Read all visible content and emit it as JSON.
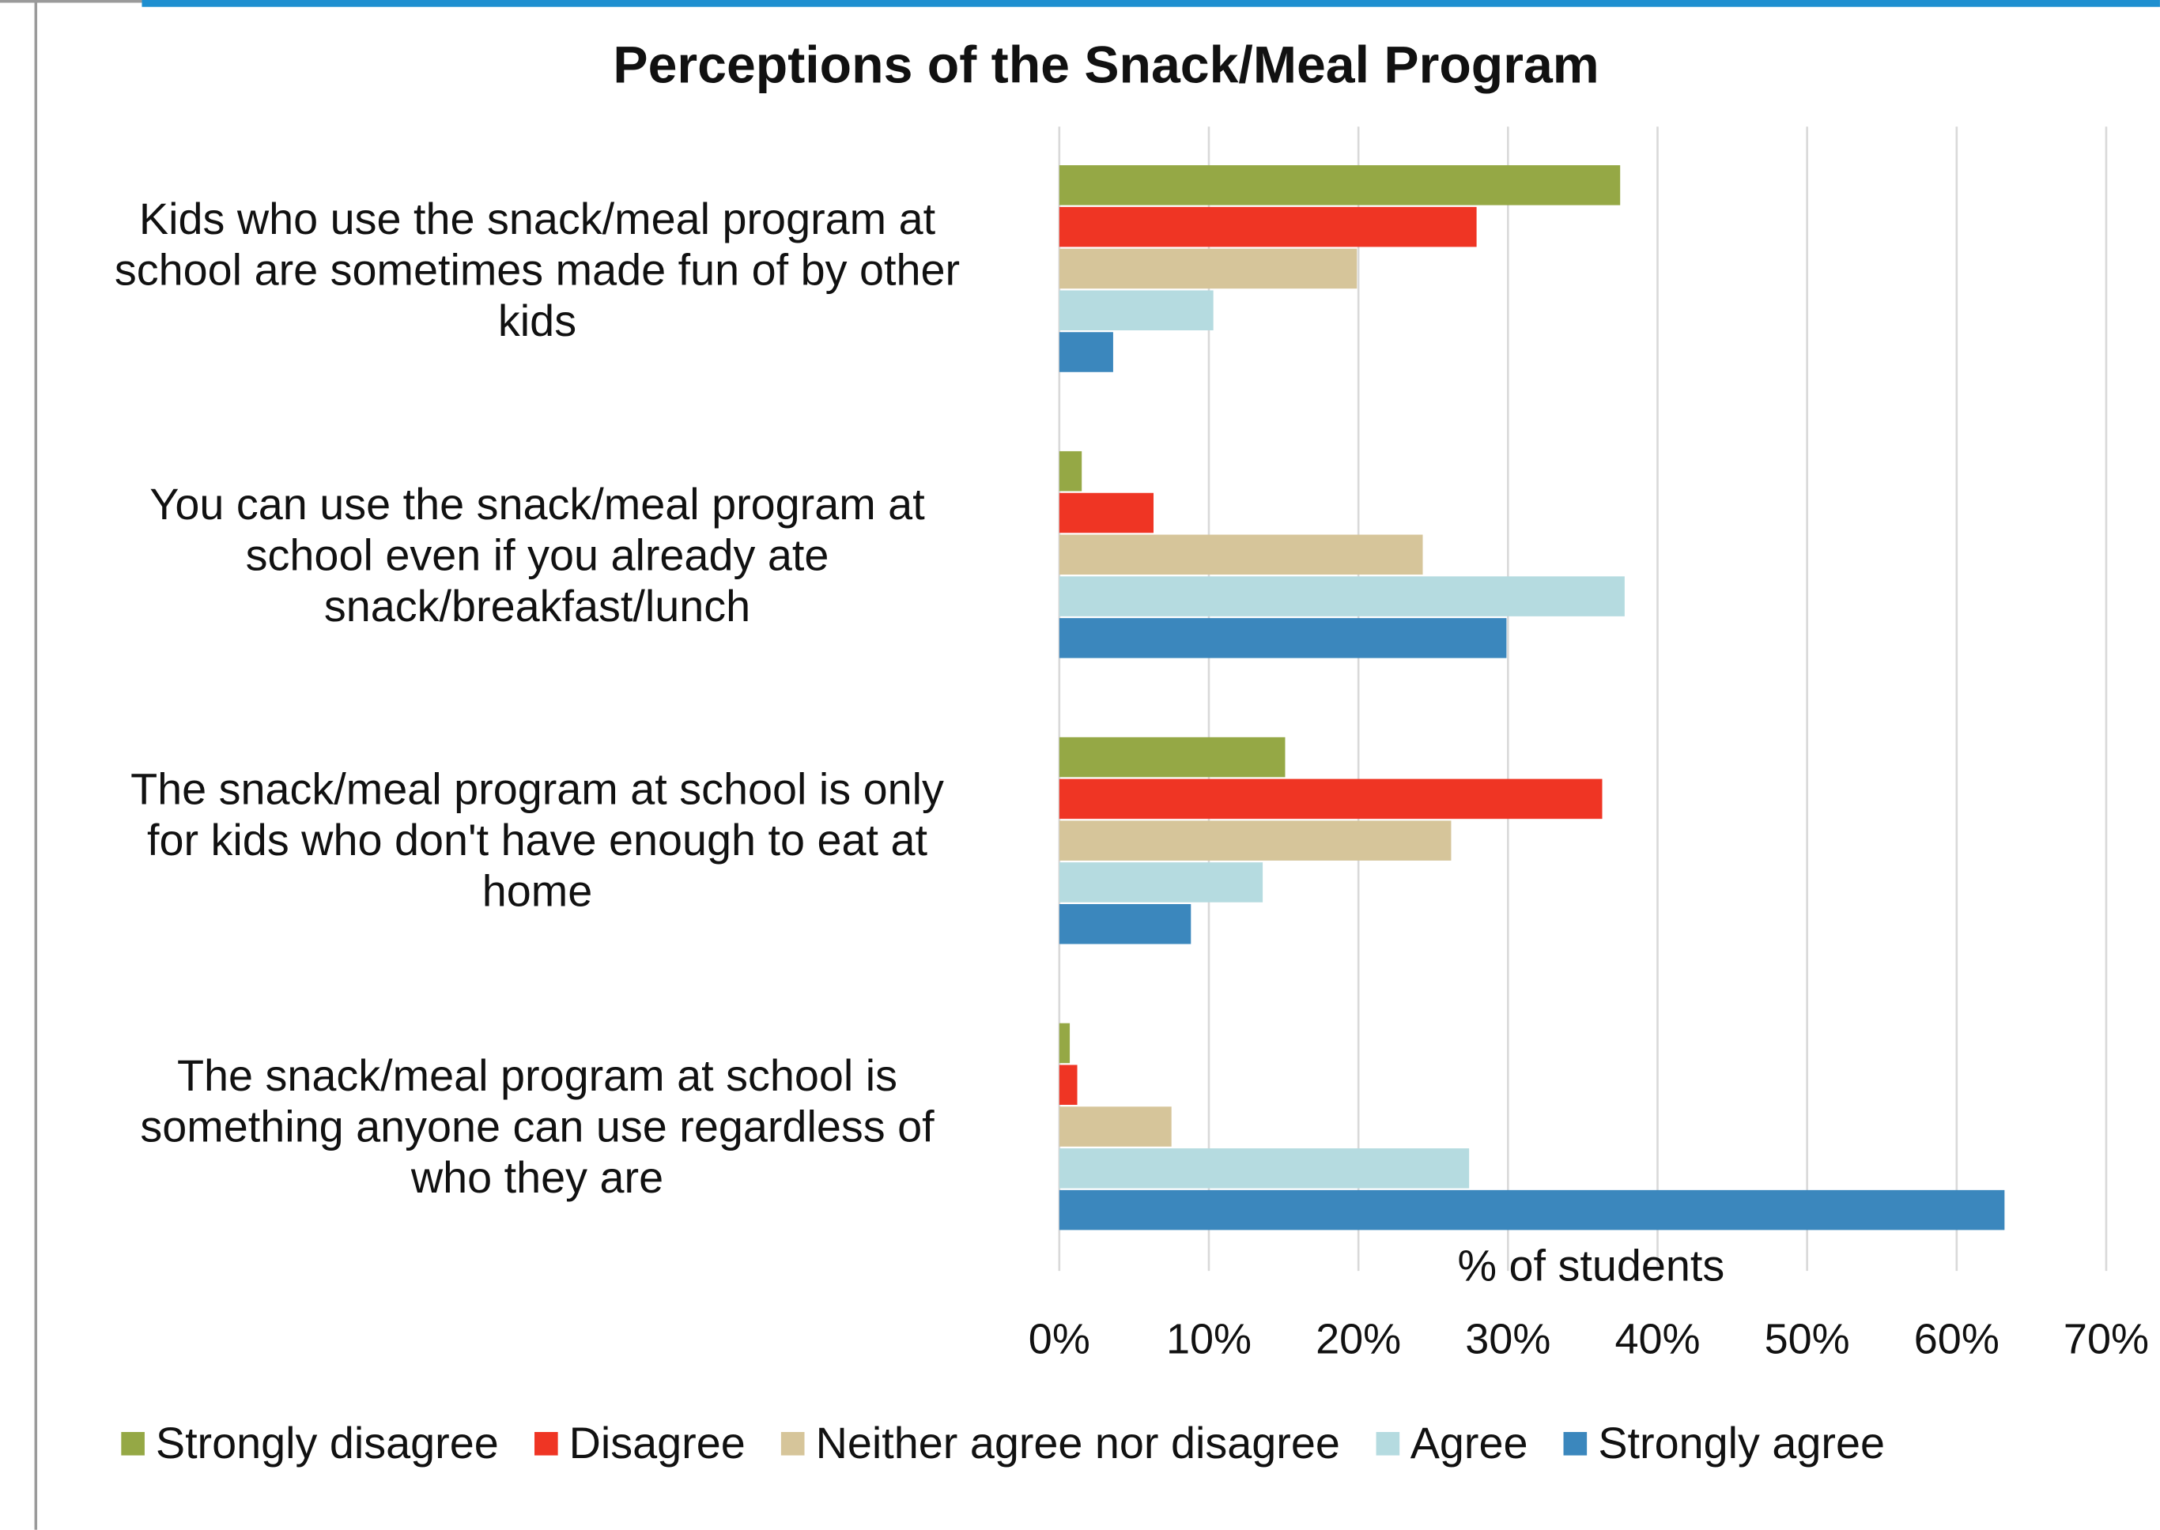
{
  "chart_data": {
    "type": "bar",
    "orientation": "horizontal",
    "title": "Perceptions of the Snack/Meal Program",
    "xlabel": "% of students",
    "ylabel": "",
    "xlim": [
      0,
      70
    ],
    "x_ticks": [
      "0%",
      "10%",
      "20%",
      "30%",
      "40%",
      "50%",
      "60%",
      "70%"
    ],
    "grid": "vertical",
    "legend_position": "bottom",
    "categories": [
      "Kids who use the snack/meal program at school are sometimes made fun of by other kids",
      "You can use the snack/meal program at school even if you already ate snack/breakfast/lunch",
      "The snack/meal program at school is only for kids who don't have enough to eat at home",
      "The snack/meal program at school is something anyone can use regardless of who they are"
    ],
    "category_label_lines": [
      [
        "Kids who use the snack/meal program at",
        "school are sometimes made fun of by other",
        "kids"
      ],
      [
        "You can use the snack/meal program at",
        "school even if you already ate",
        "snack/breakfast/lunch"
      ],
      [
        "The snack/meal program at school is only",
        "for kids who don't have enough to eat at",
        "home"
      ],
      [
        "The snack/meal program at school is",
        "something anyone can use regardless of",
        "who they are"
      ]
    ],
    "series": [
      {
        "name": "Strongly disagree",
        "color": "#95a845",
        "values": [
          37.5,
          1.5,
          15.1,
          0.7
        ]
      },
      {
        "name": "Disagree",
        "color": "#ef3524",
        "values": [
          27.9,
          6.3,
          36.3,
          1.2
        ]
      },
      {
        "name": "Neither agree nor disagree",
        "color": "#d6c59a",
        "values": [
          19.9,
          24.3,
          26.2,
          7.5
        ]
      },
      {
        "name": "Agree",
        "color": "#b5dbe0",
        "values": [
          10.3,
          37.8,
          13.6,
          27.4
        ]
      },
      {
        "name": "Strongly agree",
        "color": "#3b87bd",
        "values": [
          3.6,
          29.9,
          8.8,
          63.2
        ]
      }
    ]
  }
}
